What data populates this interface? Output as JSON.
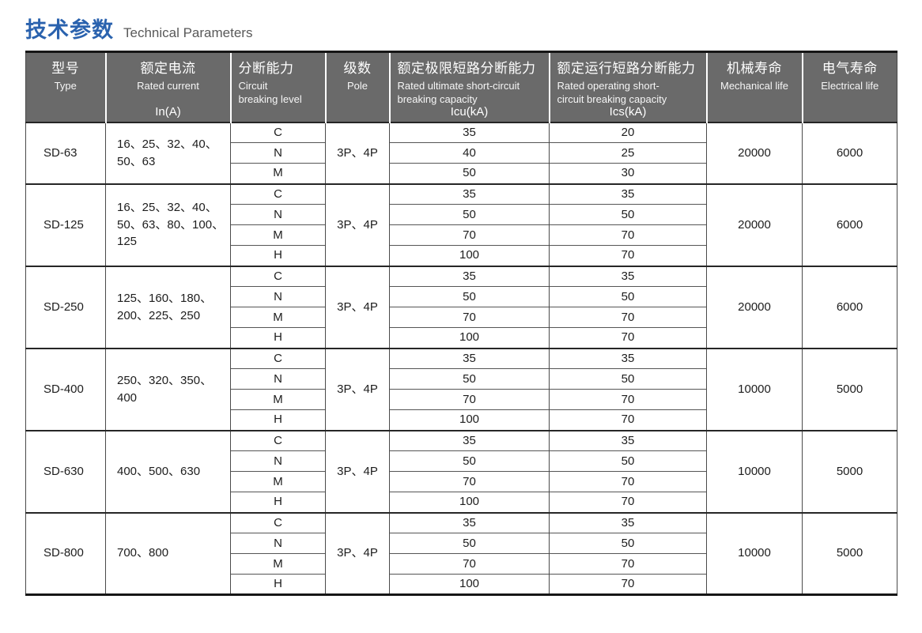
{
  "page": {
    "title_zh": "技术参数",
    "title_en": "Technical Parameters"
  },
  "colors": {
    "title_blue": "#2a62ae",
    "header_bg": "#6a6a6a",
    "header_text": "#ffffff",
    "border_dark": "#161616",
    "border_thin": "#4a4a4a"
  },
  "table": {
    "columns": [
      {
        "zh": "型号",
        "en": "Type",
        "sub": ""
      },
      {
        "zh": "额定电流",
        "en": "Rated current",
        "sub": "In(A)"
      },
      {
        "zh": "分断能力",
        "en": "Circuit\nbreaking level",
        "sub": ""
      },
      {
        "zh": "级数",
        "en": "Pole",
        "sub": ""
      },
      {
        "zh": "额定极限短路分断能力",
        "en": "Rated ultimate short-circuit\nbreaking capacity",
        "sub": "Icu(kA)"
      },
      {
        "zh": "额定运行短路分断能力",
        "en": "Rated operating short-\ncircuit breaking capacity",
        "sub": "Ics(kA)"
      },
      {
        "zh": "机械寿命",
        "en": "Mechanical life",
        "sub": ""
      },
      {
        "zh": "电气寿命",
        "en": "Electrical life",
        "sub": ""
      }
    ],
    "groups": [
      {
        "type": "SD-63",
        "rated_current": "16、25、32、40、\n50、63",
        "pole": "3P、4P",
        "mechanical_life": "20000",
        "electrical_life": "6000",
        "rows": [
          {
            "level": "C",
            "icu": "35",
            "ics": "20"
          },
          {
            "level": "N",
            "icu": "40",
            "ics": "25"
          },
          {
            "level": "M",
            "icu": "50",
            "ics": "30"
          }
        ]
      },
      {
        "type": "SD-125",
        "rated_current": "16、25、32、40、\n50、63、80、100、\n125",
        "pole": "3P、4P",
        "mechanical_life": "20000",
        "electrical_life": "6000",
        "rows": [
          {
            "level": "C",
            "icu": "35",
            "ics": "35"
          },
          {
            "level": "N",
            "icu": "50",
            "ics": "50"
          },
          {
            "level": "M",
            "icu": "70",
            "ics": "70"
          },
          {
            "level": "H",
            "icu": "100",
            "ics": "70"
          }
        ]
      },
      {
        "type": "SD-250",
        "rated_current": "125、160、180、\n200、225、250",
        "pole": "3P、4P",
        "mechanical_life": "20000",
        "electrical_life": "6000",
        "rows": [
          {
            "level": "C",
            "icu": "35",
            "ics": "35"
          },
          {
            "level": "N",
            "icu": "50",
            "ics": "50"
          },
          {
            "level": "M",
            "icu": "70",
            "ics": "70"
          },
          {
            "level": "H",
            "icu": "100",
            "ics": "70"
          }
        ]
      },
      {
        "type": "SD-400",
        "rated_current": "250、320、350、\n400",
        "pole": "3P、4P",
        "mechanical_life": "10000",
        "electrical_life": "5000",
        "rows": [
          {
            "level": "C",
            "icu": "35",
            "ics": "35"
          },
          {
            "level": "N",
            "icu": "50",
            "ics": "50"
          },
          {
            "level": "M",
            "icu": "70",
            "ics": "70"
          },
          {
            "level": "H",
            "icu": "100",
            "ics": "70"
          }
        ]
      },
      {
        "type": "SD-630",
        "rated_current": "400、500、630",
        "pole": "3P、4P",
        "mechanical_life": "10000",
        "electrical_life": "5000",
        "rows": [
          {
            "level": "C",
            "icu": "35",
            "ics": "35"
          },
          {
            "level": "N",
            "icu": "50",
            "ics": "50"
          },
          {
            "level": "M",
            "icu": "70",
            "ics": "70"
          },
          {
            "level": "H",
            "icu": "100",
            "ics": "70"
          }
        ]
      },
      {
        "type": "SD-800",
        "rated_current": "700、800",
        "pole": "3P、4P",
        "mechanical_life": "10000",
        "electrical_life": "5000",
        "rows": [
          {
            "level": "C",
            "icu": "35",
            "ics": "35"
          },
          {
            "level": "N",
            "icu": "50",
            "ics": "50"
          },
          {
            "level": "M",
            "icu": "70",
            "ics": "70"
          },
          {
            "level": "H",
            "icu": "100",
            "ics": "70"
          }
        ]
      }
    ]
  }
}
